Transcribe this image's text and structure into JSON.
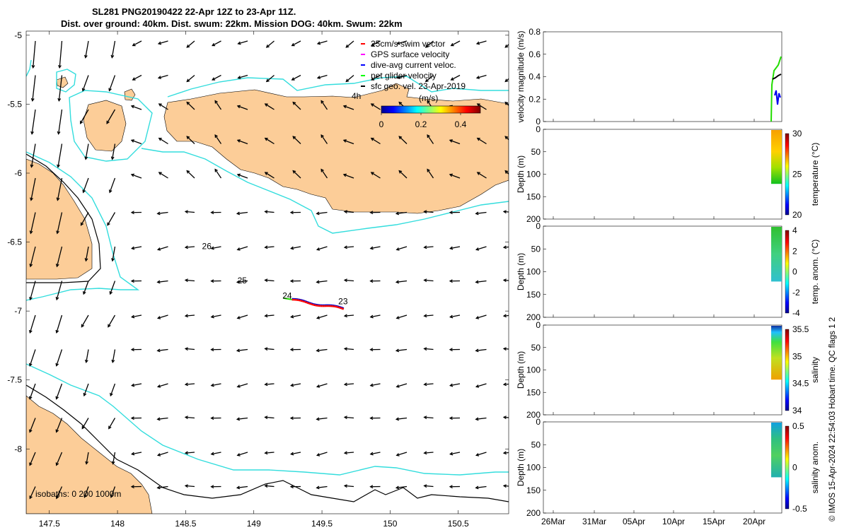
{
  "title": {
    "line1": "SL281 PNG20190422 22-Apr 12Z to 23-Apr 11Z.",
    "line2": "Dist. over ground: 40km. Dist. swum: 22km. Mission DOG: 40km. Swum: 22km"
  },
  "map": {
    "lon_range": [
      147.33,
      150.87
    ],
    "lat_range": [
      -8.47,
      -4.97
    ],
    "x_ticks": [
      "147.5",
      "148",
      "148.5",
      "149",
      "149.5",
      "150",
      "150.5"
    ],
    "x_tick_values": [
      147.5,
      148,
      148.5,
      149,
      149.5,
      150,
      150.5
    ],
    "y_ticks": [
      "-5",
      "-5.5",
      "-6",
      "-6.5",
      "-7",
      "-7.5",
      "-8"
    ],
    "y_tick_values": [
      -5,
      -5.5,
      -6,
      -6.5,
      -7,
      -7.5,
      -8
    ],
    "legend": [
      {
        "label": "25cm/s swim vector",
        "color": "#ff0000"
      },
      {
        "label": "GPS surface velocity",
        "color": "#ff00ff"
      },
      {
        "label": "dive-avg current veloc.",
        "color": "#0000ff"
      },
      {
        "label": "net glider velocity",
        "color": "#00ff00"
      },
      {
        "label": "sfc geo. vel. 23-Apr-2019",
        "color": "#000000"
      }
    ],
    "colorbar": {
      "label": "(m/s)",
      "ticks": [
        "0",
        "0.2",
        "0.4"
      ],
      "tick_values": [
        0,
        0.2,
        0.4
      ],
      "range": [
        0,
        0.5
      ]
    },
    "isobath_label": "isobaths: 0   200  1000m",
    "day_labels": [
      {
        "text": "26",
        "lon": 148.62,
        "lat": -6.55
      },
      {
        "text": "25",
        "lon": 148.88,
        "lat": -6.8
      },
      {
        "text": "24",
        "lon": 149.21,
        "lat": -6.91
      },
      {
        "text": "23",
        "lon": 149.62,
        "lat": -6.95
      }
    ],
    "vector_label": "4h",
    "colors": {
      "land": "#fccd98",
      "isobath_200": "#000000",
      "isobath_1000": "#33dddd",
      "glider_track": "#ff0000"
    }
  },
  "panels": {
    "date_ticks": [
      "26Mar",
      "31Mar",
      "05Apr",
      "10Apr",
      "15Apr",
      "20Apr"
    ],
    "velocity": {
      "ylabel": "velocity magnitude (m/s)",
      "yticks": [
        "0",
        "0.2",
        "0.4",
        "0.6",
        "0.8"
      ],
      "ylim": [
        0,
        0.8
      ]
    },
    "temperature": {
      "ylabel": "Depth (m)",
      "yticks": [
        "0",
        "50",
        "100",
        "150",
        "200"
      ],
      "cb_label": "temperature (°C)",
      "cb_ticks": [
        "20",
        "25",
        "30"
      ]
    },
    "temp_anom": {
      "ylabel": "Depth (m)",
      "yticks": [
        "0",
        "50",
        "100",
        "150",
        "200"
      ],
      "cb_label": "temp. anom. (°C)",
      "cb_ticks": [
        "-4",
        "-2",
        "0",
        "2",
        "4"
      ]
    },
    "salinity": {
      "ylabel": "Depth (m)",
      "yticks": [
        "0",
        "50",
        "100",
        "150",
        "200"
      ],
      "cb_label": "salinity",
      "cb_ticks": [
        "34",
        "34.5",
        "35",
        "35.5"
      ]
    },
    "sal_anom": {
      "ylabel": "Depth (m)",
      "yticks": [
        "0",
        "50",
        "100",
        "150",
        "200"
      ],
      "cb_label": "salinity anom.",
      "cb_ticks": [
        "-0.5",
        "0",
        "0.5"
      ]
    }
  },
  "credit": "© IMOS 15-Apr-2024 22:54:03 Hobart time. QC flags 1  2"
}
